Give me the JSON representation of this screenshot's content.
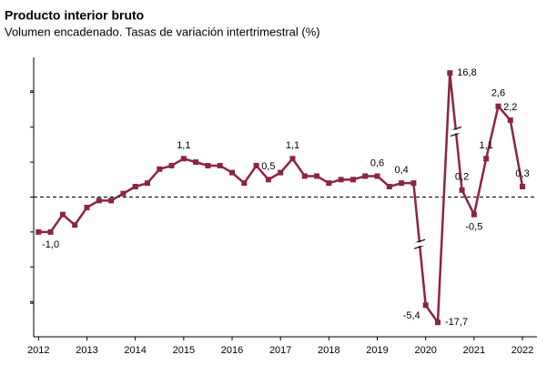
{
  "chart_data": {
    "type": "line",
    "title": "Producto interior bruto",
    "subtitle": "Volumen encadenado. Tasas de variación intertrimestral (%)",
    "x": [
      2012,
      2012.25,
      2012.5,
      2012.75,
      2013,
      2013.25,
      2013.5,
      2013.75,
      2014,
      2014.25,
      2014.5,
      2014.75,
      2015,
      2015.25,
      2015.5,
      2015.75,
      2016,
      2016.25,
      2016.5,
      2016.75,
      2017,
      2017.25,
      2017.5,
      2017.75,
      2018,
      2018.25,
      2018.5,
      2018.75,
      2019,
      2019.25,
      2019.5,
      2019.75,
      2020,
      2020.25,
      2020.5,
      2020.75,
      2021,
      2021.25,
      2021.5,
      2021.75,
      2022
    ],
    "values": [
      -1.0,
      -1.0,
      -0.5,
      -0.8,
      -0.3,
      -0.1,
      -0.1,
      0.1,
      0.3,
      0.4,
      0.8,
      0.9,
      1.1,
      1.0,
      0.9,
      0.9,
      0.7,
      0.4,
      0.9,
      0.5,
      0.7,
      1.1,
      0.6,
      0.6,
      0.4,
      0.5,
      0.5,
      0.6,
      0.6,
      0.3,
      0.4,
      0.4,
      -5.4,
      -17.7,
      16.8,
      0.2,
      -0.5,
      1.1,
      2.6,
      2.2,
      0.3
    ],
    "value_labels": [
      null,
      "-1,0",
      null,
      null,
      null,
      null,
      null,
      null,
      null,
      null,
      null,
      null,
      "1,1",
      null,
      null,
      null,
      null,
      null,
      null,
      "0,5",
      null,
      "1,1",
      null,
      null,
      null,
      null,
      null,
      null,
      "0,6",
      null,
      "0,4",
      null,
      "-5,4",
      "-17,7",
      "16,8",
      "0,2",
      "-0,5",
      "1,1",
      "2,6",
      "2,2",
      "0,3"
    ],
    "color": "#8b2540",
    "xlim": [
      2011.9,
      2022.3
    ],
    "xticks": [
      2012,
      2013,
      2014,
      2015,
      2016,
      2017,
      2018,
      2019,
      2020,
      2021,
      2022
    ],
    "ylim": [
      -4,
      4
    ],
    "yticks": [
      -4,
      -3,
      -2,
      -1,
      0,
      1,
      2,
      3,
      4
    ]
  }
}
